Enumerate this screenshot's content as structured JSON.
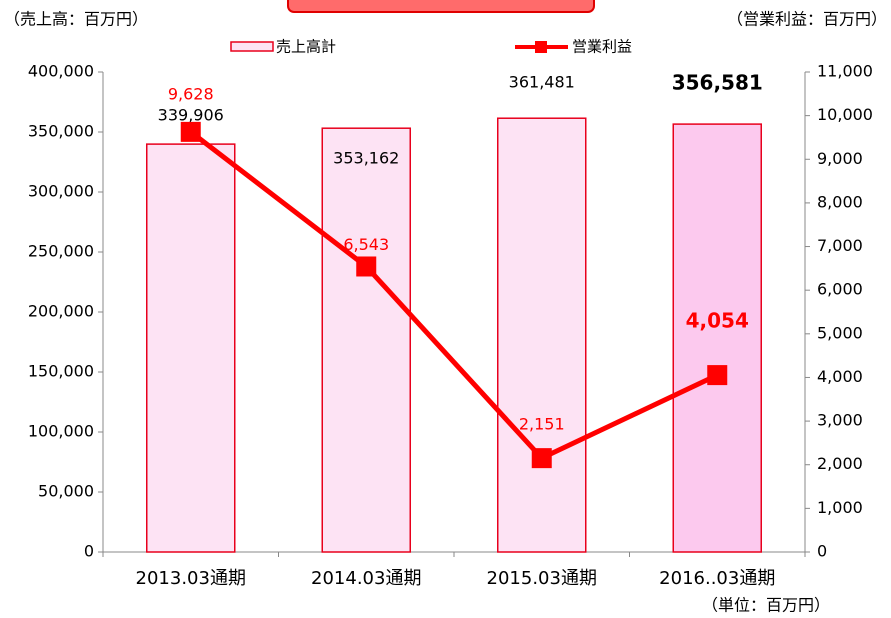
{
  "chart_data": {
    "type": "bar_line",
    "y_label": "（売上高：百万円）",
    "y2_label": "（営業利益：百万円）",
    "note": "（単位：百万円）",
    "categories": [
      "2013.03通期",
      "2014.03通期",
      "2015.03通期",
      "2016..03通期"
    ],
    "series": [
      {
        "name": "売上高計",
        "type": "bar",
        "color": "#fde3f4",
        "colors": [
          "#fde3f4",
          "#fde3f4",
          "#fde3f4",
          "#fcc9ee"
        ],
        "edge_color": "#e8001c",
        "values": [
          339906,
          353162,
          361481,
          356581
        ],
        "value_labels": [
          "339,906",
          "353,162",
          "361,481",
          "356,581"
        ]
      },
      {
        "name": "営業利益",
        "type": "line",
        "axis": "y2",
        "color": "#ff0000",
        "values": [
          9628,
          6543,
          2151,
          4054
        ],
        "value_labels": [
          "9,628",
          "6,543",
          "2,151",
          "4,054"
        ]
      }
    ],
    "ylim": [
      0,
      400000
    ],
    "yticks": [
      0,
      {
        "value": 50000,
        "label": "50,000"
      },
      {
        "value": 100000,
        "label": "100,000"
      },
      {
        "value": 150000,
        "label": "150,000"
      },
      {
        "value": 200000,
        "label": "200,000"
      },
      {
        "value": 250000,
        "label": "250,000"
      },
      {
        "value": 300000,
        "label": "300,000"
      },
      {
        "value": 350000,
        "label": "350,000"
      },
      {
        "value": 400000,
        "label": "400,000"
      }
    ],
    "y2lim": [
      0,
      11000
    ],
    "y2ticks": [
      0,
      {
        "value": 1000,
        "label": "1,000"
      },
      {
        "value": 2000,
        "label": "2,000"
      },
      {
        "value": 3000,
        "label": "3,000"
      },
      {
        "value": 4000,
        "label": "4,000"
      },
      {
        "value": 5000,
        "label": "5,000"
      },
      {
        "value": 6000,
        "label": "6,000"
      },
      {
        "value": 7000,
        "label": "7,000"
      },
      {
        "value": 8000,
        "label": "8,000"
      },
      {
        "value": 9000,
        "label": "9,000"
      },
      {
        "value": 10000,
        "label": "10,000"
      },
      {
        "value": 11000,
        "label": "11,000"
      }
    ]
  }
}
